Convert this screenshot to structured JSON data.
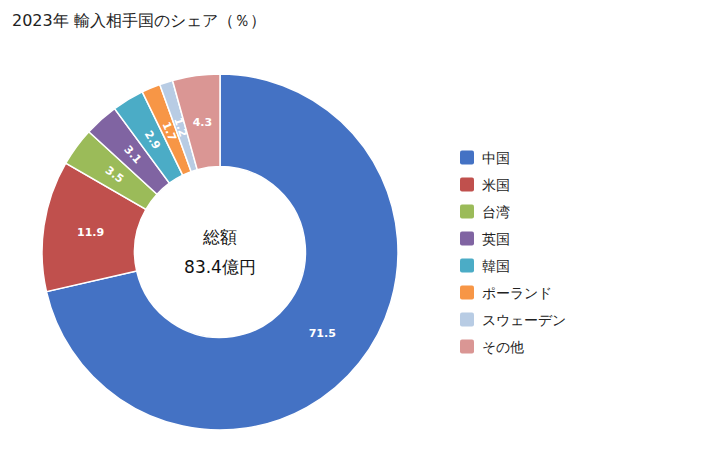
{
  "chart_data": {
    "type": "pie",
    "title": "2023年 輸入相手国のシェア（％）",
    "annotations": [
      "総額",
      "83.4億円"
    ],
    "categories": [
      "中国",
      "米国",
      "台湾",
      "英国",
      "韓国",
      "ポーランド",
      "スウェーデン",
      "その他"
    ],
    "values": [
      71.5,
      11.9,
      3.5,
      3.1,
      2.9,
      1.7,
      1.2,
      4.3
    ],
    "colors": [
      "#4472C4",
      "#C0504D",
      "#9BBB59",
      "#8064A2",
      "#4BACC6",
      "#F79646",
      "#B8CCE4",
      "#DA9694"
    ],
    "data_labels": true,
    "legend": "right"
  }
}
